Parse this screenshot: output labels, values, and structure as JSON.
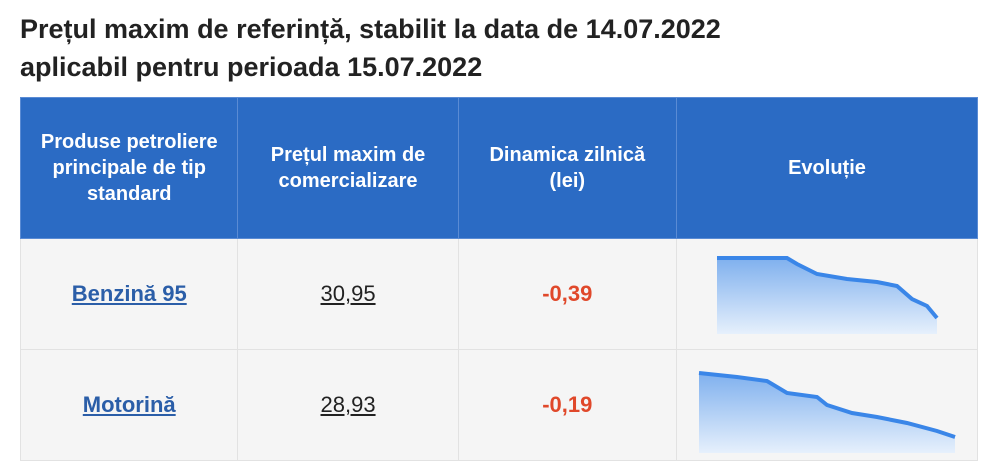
{
  "header": {
    "title": [
      "Prețul maxim de referință, stabilit la data de 14.07.2022",
      "aplicabil pentru perioada 15.07.2022"
    ]
  },
  "table": {
    "columns": [
      "Produse petroliere principale de tip standard",
      "Prețul maxim de comercializare",
      "Dinamica zilnică (lei)",
      "Evoluție"
    ],
    "rows": [
      [
        "Benzină 95",
        "30,95",
        "-0,39"
      ],
      [
        "Motorină",
        "28,93",
        "-0,19"
      ]
    ]
  }
}
